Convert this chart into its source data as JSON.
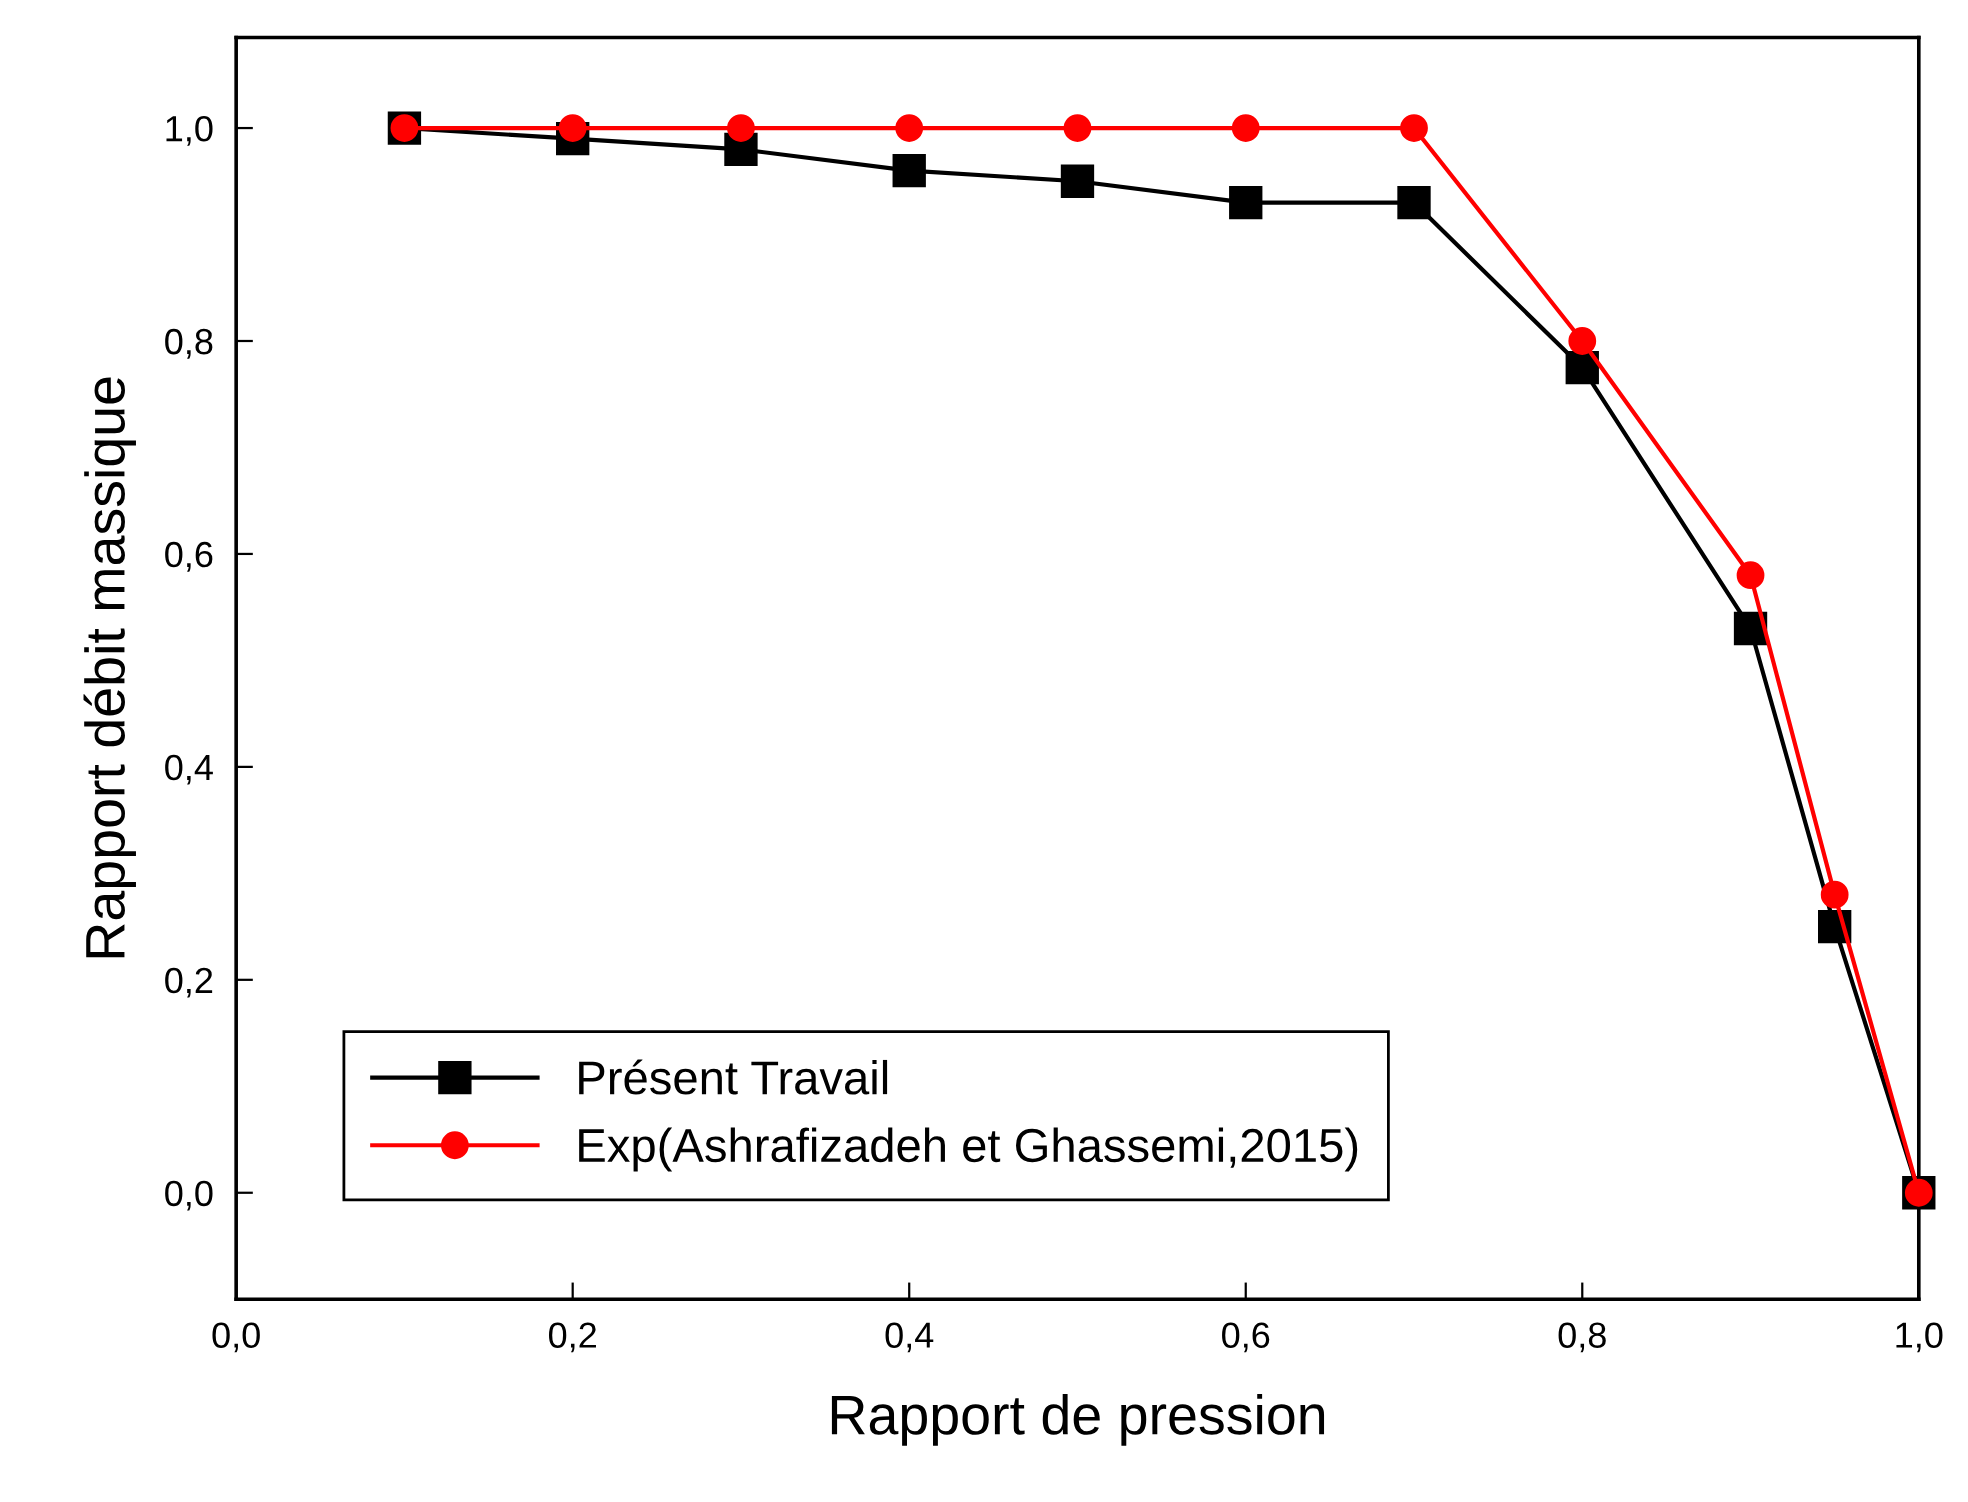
{
  "chart_data": {
    "type": "line",
    "xlabel": "Rapport de pression",
    "ylabel": "Rapport débit massique",
    "x": [
      0.1,
      0.2,
      0.3,
      0.4,
      0.5,
      0.6,
      0.7,
      0.8,
      0.9,
      0.95,
      1.0
    ],
    "series": [
      {
        "name": "Présent Travail",
        "color": "#000000",
        "marker": "square",
        "values": [
          1.0,
          0.99,
          0.98,
          0.96,
          0.95,
          0.93,
          0.93,
          0.775,
          0.53,
          0.25,
          0.0
        ]
      },
      {
        "name": "Exp(Ashrafizadeh et Ghassemi,2015)",
        "color": "#ff0000",
        "marker": "circle",
        "values": [
          1.0,
          1.0,
          1.0,
          1.0,
          1.0,
          1.0,
          1.0,
          0.8,
          0.58,
          0.28,
          0.0
        ]
      }
    ],
    "xlim": [
      0.0,
      1.0
    ],
    "ylim": [
      -0.1,
      1.085
    ],
    "xticks": [
      {
        "value": 0.0,
        "label": "0,0"
      },
      {
        "value": 0.2,
        "label": "0,2"
      },
      {
        "value": 0.4,
        "label": "0,4"
      },
      {
        "value": 0.6,
        "label": "0,6"
      },
      {
        "value": 0.8,
        "label": "0,8"
      },
      {
        "value": 1.0,
        "label": "1,0"
      }
    ],
    "yticks": [
      {
        "value": 0.0,
        "label": "0,0"
      },
      {
        "value": 0.2,
        "label": "0,2"
      },
      {
        "value": 0.4,
        "label": "0,4"
      },
      {
        "value": 0.6,
        "label": "0,6"
      },
      {
        "value": 0.8,
        "label": "0,8"
      },
      {
        "value": 1.0,
        "label": "1,0"
      }
    ],
    "grid": false,
    "legend": "bottom left",
    "line_style": "solid"
  }
}
